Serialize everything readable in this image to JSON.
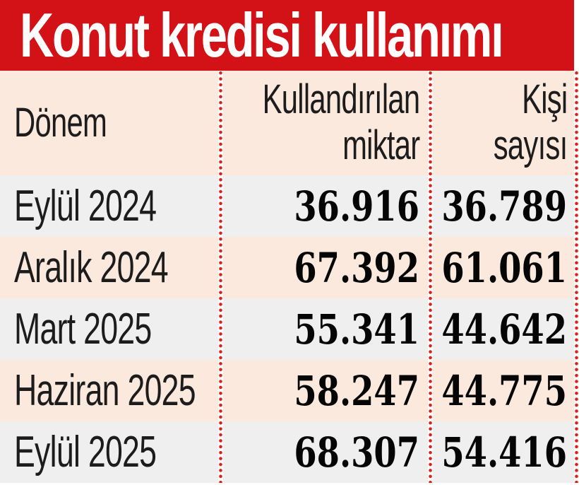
{
  "title": "Konut kredisi kullanımı",
  "colors": {
    "banner_red": "#d31217",
    "dot_red": "#d7221b",
    "row_cream": "#fce9de",
    "row_gray": "#f0efef",
    "label_text": "#1c1c1c",
    "number_text": "#050505",
    "banner_title_text": "#ffffff"
  },
  "table": {
    "columns": [
      {
        "key": "period",
        "label": "Dönem",
        "align": "left"
      },
      {
        "key": "amount",
        "label": "Kullandırılan miktar",
        "label_lines": [
          "Kullandırılan",
          "miktar"
        ],
        "align": "right"
      },
      {
        "key": "people",
        "label": "Kişi sayısı",
        "label_lines": [
          "Kişi",
          "sayısı"
        ],
        "align": "right"
      }
    ],
    "rows": [
      {
        "period": "Eylül 2024",
        "amount": "36.916",
        "people": "36.789"
      },
      {
        "period": "Aralık 2024",
        "amount": "67.392",
        "people": "61.061"
      },
      {
        "period": "Mart 2025",
        "amount": "55.341",
        "people": "44.642"
      },
      {
        "period": "Haziran 2025",
        "amount": "58.247",
        "people": "44.775"
      },
      {
        "period": "Eylül 2025",
        "amount": "68.307",
        "people": "54.416"
      }
    ]
  },
  "chart_data": {
    "type": "table",
    "title": "Konut kredisi kullanımı",
    "columns": [
      "Dönem",
      "Kullandırılan miktar",
      "Kişi sayısı"
    ],
    "categories": [
      "Eylül 2024",
      "Aralık 2024",
      "Mart 2025",
      "Haziran 2025",
      "Eylül 2025"
    ],
    "series": [
      {
        "name": "Kullandırılan miktar",
        "values": [
          36916,
          67392,
          55341,
          58247,
          68307
        ]
      },
      {
        "name": "Kişi sayısı",
        "values": [
          36789,
          61061,
          44642,
          44775,
          54416
        ]
      }
    ],
    "number_format": "tr-TR thousands with dot"
  }
}
